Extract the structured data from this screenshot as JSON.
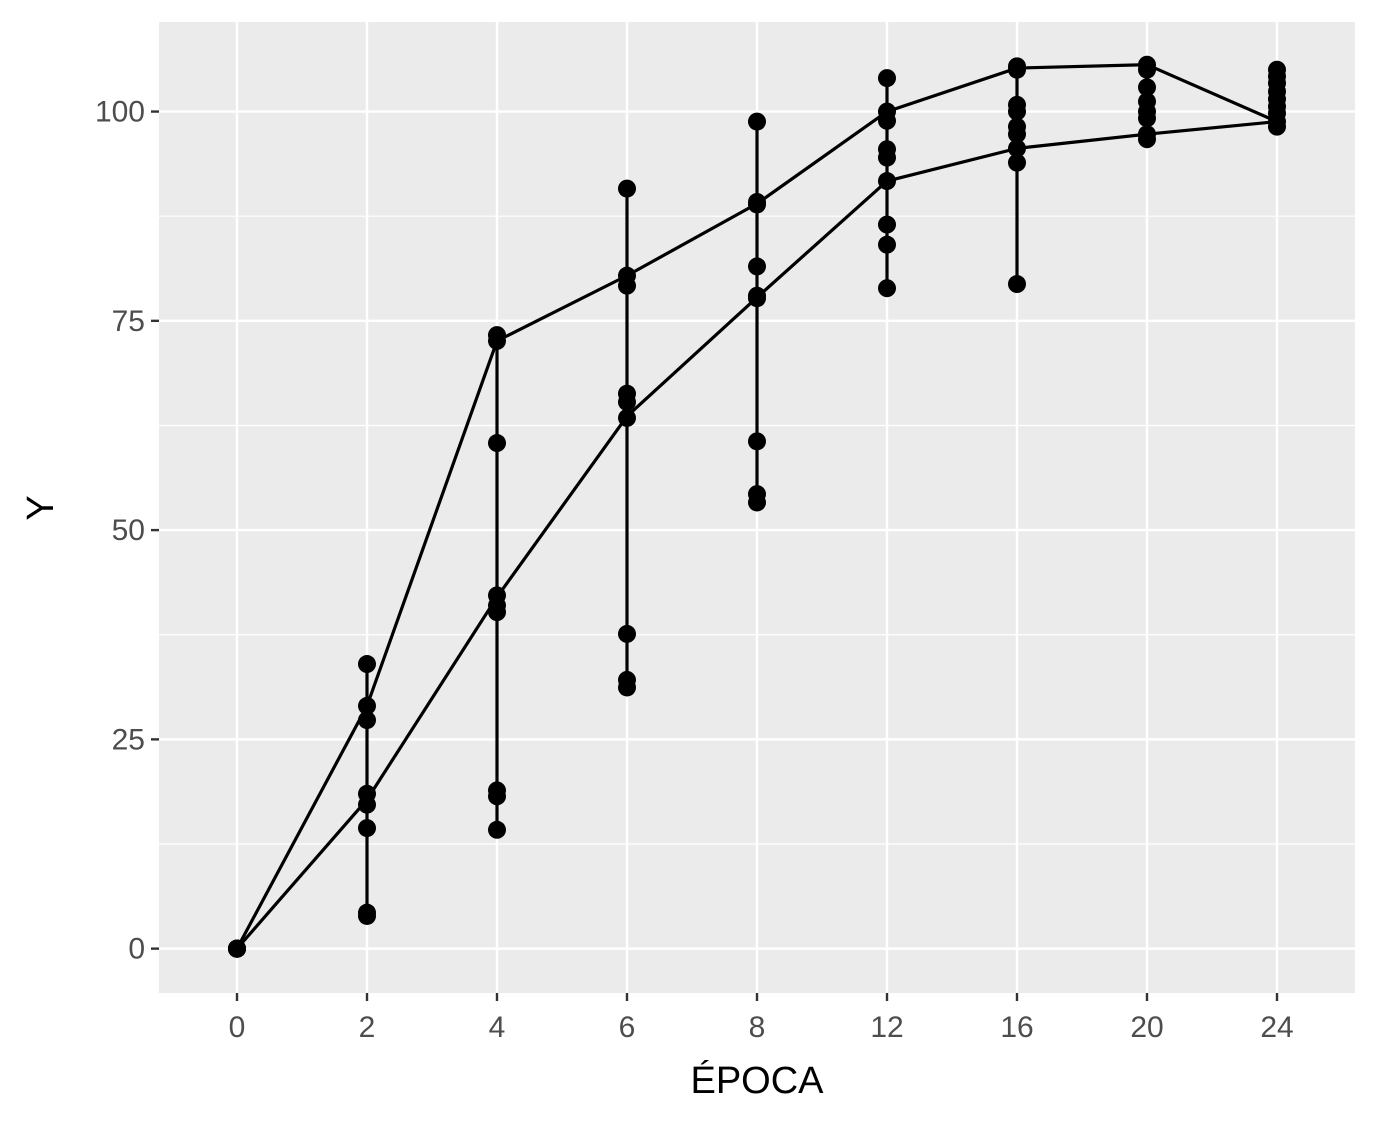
{
  "chart_data": {
    "type": "scatter",
    "title": "",
    "xlabel": "ÉPOCA",
    "ylabel": "Y",
    "x_type": "categorical",
    "categories": [
      "0",
      "2",
      "4",
      "6",
      "8",
      "12",
      "16",
      "20",
      "24"
    ],
    "ylim": [
      -5.3,
      110.7
    ],
    "yticks": [
      0,
      25,
      50,
      75,
      100
    ],
    "grid": true,
    "legend": "none",
    "colors": {
      "panel": "#ebebeb",
      "grid": "#ffffff",
      "points": "#000000",
      "line": "#000000"
    },
    "points": [
      {
        "x": "0",
        "y": [
          0,
          0,
          0,
          0,
          0,
          0,
          0,
          0,
          0
        ]
      },
      {
        "x": "2",
        "y": [
          34.0,
          29.0,
          27.3,
          18.5,
          17.2,
          14.4,
          4.3,
          3.9
        ]
      },
      {
        "x": "4",
        "y": [
          73.3,
          72.6,
          60.4,
          42.2,
          41.0,
          40.2,
          18.9,
          18.2,
          14.2
        ]
      },
      {
        "x": "6",
        "y": [
          90.8,
          80.4,
          79.2,
          66.3,
          65.3,
          63.4,
          37.6,
          32.1,
          31.2
        ]
      },
      {
        "x": "8",
        "y": [
          98.8,
          89.2,
          88.9,
          81.5,
          78.0,
          77.7,
          60.6,
          54.3,
          53.3
        ]
      },
      {
        "x": "12",
        "y": [
          104.0,
          100.0,
          98.9,
          95.5,
          94.5,
          91.7,
          86.5,
          84.1,
          78.9
        ]
      },
      {
        "x": "16",
        "y": [
          105.4,
          105.0,
          100.8,
          100.0,
          98.2,
          97.3,
          95.6,
          93.9,
          79.4
        ]
      },
      {
        "x": "20",
        "y": [
          105.6,
          105.0,
          102.9,
          101.2,
          100.0,
          99.2,
          97.3,
          96.7
        ]
      },
      {
        "x": "24",
        "y": [
          105.0,
          104.2,
          103.4,
          102.4,
          101.5,
          100.6,
          99.8,
          98.8,
          98.2
        ]
      }
    ],
    "series": [
      {
        "values": [
          0,
          17.8,
          42.0,
          63.6,
          77.8,
          91.7,
          95.6,
          97.3,
          98.8
        ]
      },
      {
        "values": [
          0,
          29.0,
          72.6,
          80.4,
          89.0,
          100.0,
          105.2,
          105.6,
          98.8
        ]
      }
    ]
  }
}
